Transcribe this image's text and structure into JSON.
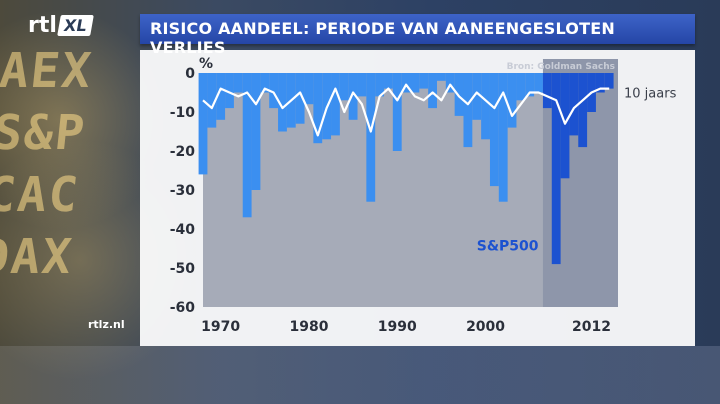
{
  "header": {
    "logo_text": "rtl",
    "logo_badge": "XL",
    "title": "RISICO AANDEEL: PERIODE VAN AANEENGESLOTEN VERLIES"
  },
  "background": {
    "ticker_text": "AEX S&P CAC DAX"
  },
  "footer": {
    "site": "rtlz.nl"
  },
  "colors": {
    "title_bar": "#2e52b8",
    "bar_light": "#3b8ff0",
    "bar_highlight": "#1c52d0",
    "line": "#ffffff",
    "plot_bg": "#a6abb8"
  },
  "chart_data": {
    "type": "bar",
    "ylabel": "%",
    "source": "Bron: Goldman Sachs",
    "ylim": [
      -60,
      0
    ],
    "yticks": [
      0,
      -10,
      -20,
      -30,
      -40,
      -50,
      -60
    ],
    "xlim": [
      1968,
      2015
    ],
    "xtick_labels": [
      "1970",
      "1980",
      "1990",
      "2000",
      "2012"
    ],
    "xtick_years": [
      1970,
      1980,
      1990,
      2000,
      2012
    ],
    "highlight_from": 2007,
    "series": [
      {
        "name": "S&P500",
        "kind": "bar",
        "x": [
          1968,
          1969,
          1970,
          1971,
          1972,
          1973,
          1974,
          1975,
          1976,
          1977,
          1978,
          1979,
          1980,
          1981,
          1982,
          1983,
          1984,
          1985,
          1986,
          1987,
          1988,
          1989,
          1990,
          1991,
          1992,
          1993,
          1994,
          1995,
          1996,
          1997,
          1998,
          1999,
          2000,
          2001,
          2002,
          2003,
          2004,
          2005,
          2006,
          2007,
          2008,
          2009,
          2010,
          2011,
          2012,
          2013,
          2014
        ],
        "values": [
          -26,
          -14,
          -12,
          -9,
          -5,
          -37,
          -30,
          -5,
          -9,
          -15,
          -14,
          -13,
          -8,
          -18,
          -17,
          -16,
          -7,
          -12,
          -6,
          -33,
          -6,
          -4,
          -20,
          -5,
          -5,
          -4,
          -9,
          -2,
          -5,
          -11,
          -19,
          -12,
          -17,
          -29,
          -33,
          -14,
          -7,
          -6,
          -5,
          -9,
          -49,
          -27,
          -16,
          -19,
          -10,
          -5,
          -4
        ]
      },
      {
        "name": "10 jaars",
        "kind": "line",
        "x": [
          1968,
          1969,
          1970,
          1971,
          1972,
          1973,
          1974,
          1975,
          1976,
          1977,
          1978,
          1979,
          1980,
          1981,
          1982,
          1983,
          1984,
          1985,
          1986,
          1987,
          1988,
          1989,
          1990,
          1991,
          1992,
          1993,
          1994,
          1995,
          1996,
          1997,
          1998,
          1999,
          2000,
          2001,
          2002,
          2003,
          2004,
          2005,
          2006,
          2007,
          2008,
          2009,
          2010,
          2011,
          2012,
          2013,
          2014
        ],
        "values": [
          -7,
          -9,
          -4,
          -5,
          -6,
          -5,
          -8,
          -4,
          -5,
          -9,
          -7,
          -5,
          -10,
          -16,
          -9,
          -4,
          -10,
          -5,
          -8,
          -15,
          -6,
          -4,
          -7,
          -3,
          -6,
          -7,
          -5,
          -7,
          -3,
          -6,
          -8,
          -5,
          -7,
          -9,
          -5,
          -11,
          -8,
          -5,
          -5,
          -6,
          -7,
          -13,
          -9,
          -7,
          -5,
          -4,
          -4
        ]
      }
    ],
    "series_labels": {
      "line": "10 jaars",
      "bars": "S&P500"
    }
  }
}
